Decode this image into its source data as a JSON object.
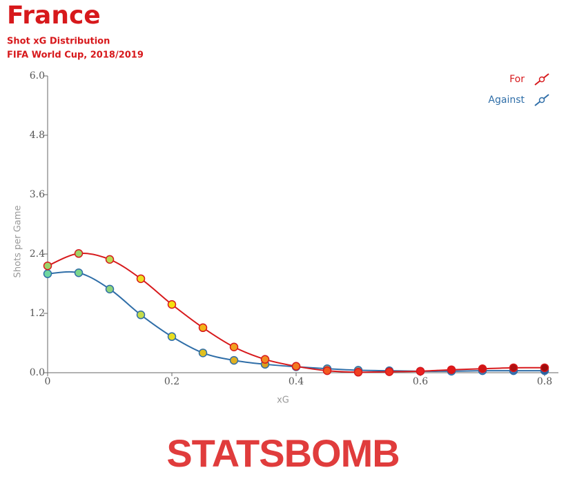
{
  "header": {
    "title": "France",
    "subtitle": "Shot xG Distribution",
    "competition": "FIFA World Cup, 2018/2019"
  },
  "logo": {
    "text": "STATSBOMB"
  },
  "chart_data": {
    "type": "line",
    "x_label": "xG",
    "y_label": "Shots per Game",
    "x": [
      0,
      0.05,
      0.1,
      0.15,
      0.2,
      0.25,
      0.3,
      0.35,
      0.4,
      0.45,
      0.5,
      0.55,
      0.6,
      0.65,
      0.7,
      0.75,
      0.8
    ],
    "xlim": [
      0,
      0.8
    ],
    "xticks": [
      0,
      0.2,
      0.4,
      0.6,
      0.8
    ],
    "ylim": [
      0,
      6
    ],
    "yticks": [
      {
        "value": 0,
        "label": "0.0"
      },
      1.2,
      2.4,
      3.6,
      4.8,
      {
        "value": 6,
        "label": "6.0"
      }
    ],
    "legend_position": "top-right",
    "series": [
      {
        "name": "For",
        "color": "#d7191c",
        "values": [
          2.16,
          2.41,
          2.29,
          1.9,
          1.38,
          0.91,
          0.52,
          0.27,
          0.13,
          0.04,
          0.01,
          0.02,
          0.03,
          0.06,
          0.08,
          0.1,
          0.1
        ],
        "marker_colors": [
          "#9bd46a",
          "#9bd46a",
          "#b6dd55",
          "#ece020",
          "#f5e010",
          "#f2b318",
          "#f2a020",
          "#f28a20",
          "#f27a20",
          "#f25a20",
          "#f04020",
          "#ee3020",
          "#ea2020",
          "#e01818",
          "#d01515",
          "#b01010",
          "#a00c0c"
        ]
      },
      {
        "name": "Against",
        "color": "#2f6ea8",
        "values": [
          2.0,
          2.02,
          1.69,
          1.17,
          0.73,
          0.4,
          0.25,
          0.17,
          0.12,
          0.08,
          0.05,
          0.04,
          0.03,
          0.03,
          0.04,
          0.04,
          0.04
        ],
        "marker_colors": [
          "#6fd6a0",
          "#7ed68a",
          "#8fd47a",
          "#c5dc4a",
          "#e8dd20",
          "#e0c020",
          "#e0b020",
          "#d8a020",
          "#c89a30",
          "#a89a60",
          "#8a9a80",
          "#7a9aa0",
          "#6a90b0",
          "#5a88b8",
          "#4a80b8",
          "#3a70b0",
          "#2a60a0"
        ]
      }
    ]
  }
}
